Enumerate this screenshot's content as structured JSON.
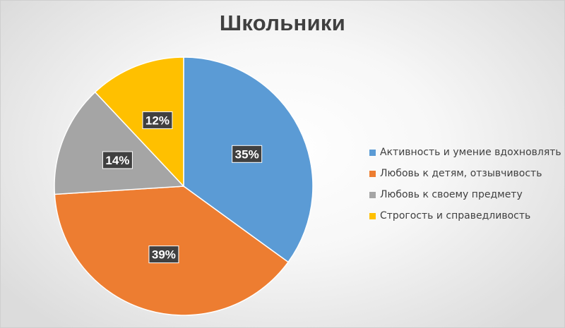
{
  "chart_data": {
    "type": "pie",
    "title": "Школьники",
    "categories": [
      "Активность и умение вдохновлять",
      "Любовь к детям, отзывчивость",
      "Любовь к своему предмету",
      "Строгость и справедливость"
    ],
    "values": [
      35,
      39,
      14,
      12
    ],
    "value_labels": [
      "35%",
      "39%",
      "14%",
      "12%"
    ],
    "colors": [
      "#5b9bd5",
      "#ed7d31",
      "#a5a5a5",
      "#ffc000"
    ],
    "legend_position": "right",
    "start_angle_deg": 0,
    "direction": "clockwise"
  }
}
